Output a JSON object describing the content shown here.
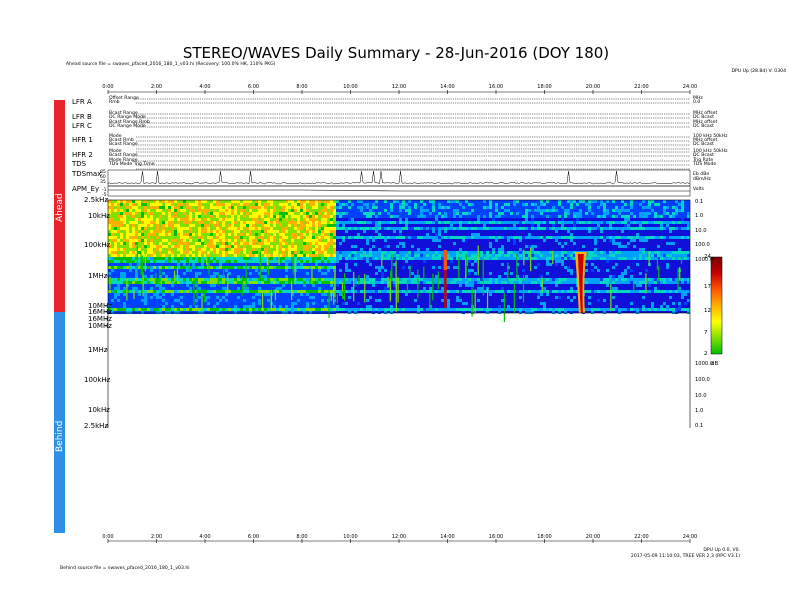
{
  "title": "STEREO/WAVES Daily Summary - 28-Jun-2016 (DOY 180)",
  "ahead_source": "Ahead source file = swaves_pfaced_2016_180_1_v03.hi (Recovery: 100.0% HK, 110% PKG)",
  "behind_source": "Behind source file = swaves_pfaced_2016_180_1_v03.hi",
  "top_right_note": "DPU Up (28.8d) V: 0304",
  "bottom_right_note_1": "DPU Up 0.0, V0.",
  "bottom_right_note_2": "2017-05-09 11:10:03, TREE VER 2.3 (RPC V3.1)",
  "sidebar": {
    "ahead": "Ahead",
    "behind": "Behind"
  },
  "colorbar": {
    "ticks": [
      "24",
      "17",
      "12",
      "7",
      "2"
    ],
    "unit": "dB",
    "colors": [
      "#7a0000",
      "#c80000",
      "#ff5500",
      "#ffb000",
      "#ffff00",
      "#80e000",
      "#00c000"
    ]
  },
  "hk_channels": [
    {
      "label": "LFR A",
      "sub": [
        "Offset Range",
        "Rmb"
      ],
      "right": [
        "MHz",
        "0.0"
      ]
    },
    {
      "label": "LFR B",
      "sub": [
        "Bcast Range",
        "DC Range Mode"
      ],
      "right": [
        "MHz offset",
        "DC Bcast"
      ]
    },
    {
      "label": "LFR C",
      "sub": [
        "Bcast Range Rmb",
        "DC Range Mode"
      ],
      "right": [
        "MHz offset",
        "DC Bcast"
      ]
    },
    {
      "label": "HFR 1",
      "sub": [
        "Mode",
        "Bcast Rmb",
        "Bcast Range"
      ],
      "right": [
        "100 kHz 50kHz",
        "MHz offset",
        "DC Bcast"
      ]
    },
    {
      "label": "HFR 2",
      "sub": [
        "Mode",
        "Bcast Range"
      ],
      "right": [
        "100 kHz 50kHz",
        "DC Bcast"
      ]
    },
    {
      "label": "TDS",
      "sub": [
        "Mode Range",
        "TDS Mode Trig Time"
      ],
      "right": [
        "Trig Rate",
        "TDS Mode"
      ]
    }
  ],
  "tdsmax": {
    "label": "TDSmax",
    "ticks": [
      "85",
      "60",
      "35"
    ],
    "right": [
      "Eb dBe",
      "dBm/Hz"
    ]
  },
  "apm": {
    "label": "APM_Ey",
    "ticks": [
      "-1",
      "-5"
    ],
    "right": [
      "Volts"
    ]
  },
  "chart_data": {
    "type": "heatmap",
    "title": "STEREO/WAVES Daily Summary - 28-Jun-2016 (DOY 180)",
    "x_ticks": [
      "0:00",
      "2:00",
      "4:00",
      "6:00",
      "8:00",
      "10:00",
      "12:00",
      "14:00",
      "16:00",
      "18:00",
      "20:00",
      "22:00",
      "24:00"
    ],
    "x_range_hours": [
      0,
      24
    ],
    "panels": [
      {
        "name": "Ahead",
        "freq_labels_left": [
          "2.5kHz",
          "10kHz",
          "100kHz",
          "1MHz",
          "10MHz",
          "16MHz"
        ],
        "wavelength_labels_right": [
          "0.1",
          "1.0",
          "10.0",
          "100.0",
          "1000.0"
        ],
        "has_data": true,
        "events": [
          {
            "type": "type III burst",
            "time_hours": 13.9,
            "freq_top": "100kHz",
            "freq_bottom": "10MHz"
          },
          {
            "type": "intense type III burst",
            "time_hours": 19.5,
            "freq_top": "100kHz",
            "freq_bottom": "16MHz"
          }
        ],
        "elevated_background_hours": [
          0,
          9.4
        ],
        "dB_range": [
          2,
          24
        ]
      },
      {
        "name": "Behind",
        "freq_labels_left": [
          "16MHz",
          "10MHz",
          "1MHz",
          "100kHz",
          "10kHz",
          "2.5kHz"
        ],
        "wavelength_labels_right": [
          "1000.0",
          "100.0",
          "10.0",
          "1.0",
          "0.1"
        ],
        "has_data": false
      }
    ]
  }
}
